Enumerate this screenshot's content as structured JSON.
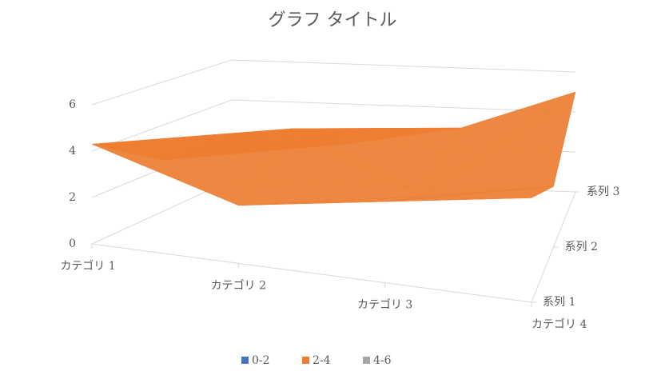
{
  "chart_data": {
    "type": "surface",
    "title": "グラフ タイトル",
    "categories": [
      "カテゴリ 1",
      "カテゴリ 2",
      "カテゴリ 3",
      "カテゴリ 4"
    ],
    "series": [
      {
        "name": "系列 1",
        "values": [
          4.3,
          2.5,
          3.5,
          4.5
        ]
      },
      {
        "name": "系列 2",
        "values": [
          2.4,
          4.4,
          1.8,
          2.8
        ]
      },
      {
        "name": "系列 3",
        "values": [
          2,
          2,
          3,
          5
        ]
      }
    ],
    "zlim": [
      0,
      6
    ],
    "zticks": [
      0,
      2,
      4,
      6
    ],
    "grid": true,
    "bands": [
      {
        "name": "0-2",
        "color": "#4472c4"
      },
      {
        "name": "2-4",
        "color": "#ed7d31"
      },
      {
        "name": "4-6",
        "color": "#a5a5a5"
      }
    ],
    "legend": "bottom"
  }
}
